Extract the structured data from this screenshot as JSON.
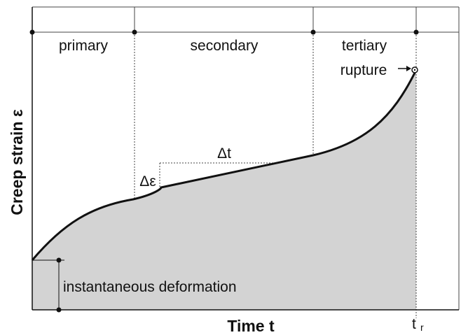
{
  "stages": {
    "primary": "primary",
    "secondary": "secondary",
    "tertiary": "tertiary"
  },
  "annotations": {
    "rupture": "rupture",
    "delta_strain": "Δε",
    "delta_time": "Δt",
    "instantaneous": "instantaneous deformation"
  },
  "axes": {
    "y_label": "Creep strain ε",
    "x_label": "Time t",
    "rupture_time": "t",
    "rupture_time_sub": "r"
  }
}
